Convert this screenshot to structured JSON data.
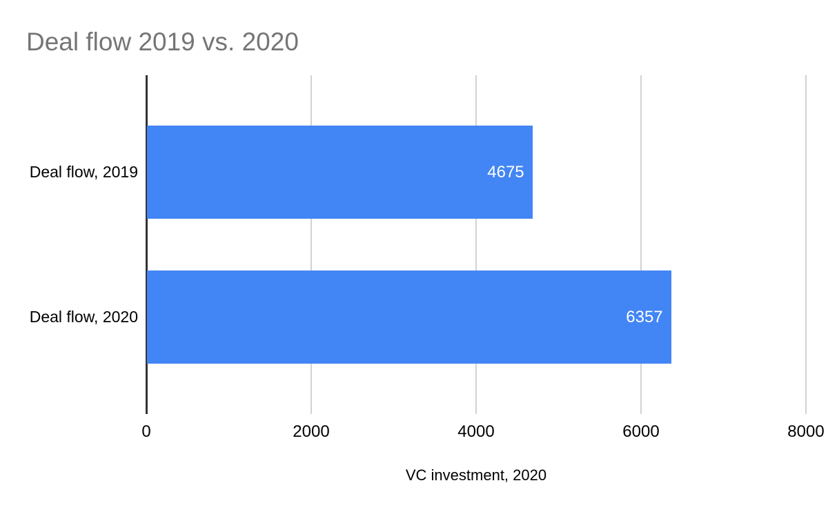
{
  "chart_data": {
    "type": "bar",
    "orientation": "horizontal",
    "title": "Deal flow 2019 vs. 2020",
    "xlabel": "VC investment, 2020",
    "ylabel": "",
    "categories": [
      "Deal flow, 2019",
      "Deal flow, 2020"
    ],
    "values": [
      4675,
      6357
    ],
    "value_labels": [
      "4675",
      "6357"
    ],
    "xlim": [
      0,
      8000
    ],
    "xticks": [
      0,
      2000,
      4000,
      6000,
      8000
    ],
    "xtick_labels": [
      "0",
      "2000",
      "4000",
      "6000",
      "8000"
    ],
    "grid": true,
    "legend": false
  },
  "colors": {
    "bar": "#4285f4",
    "title_text": "#757575",
    "gridline": "#d2d2d2",
    "axis_line": "#333333",
    "value_label_text": "#ffffff",
    "axis_text": "#000000",
    "background": "#ffffff"
  }
}
